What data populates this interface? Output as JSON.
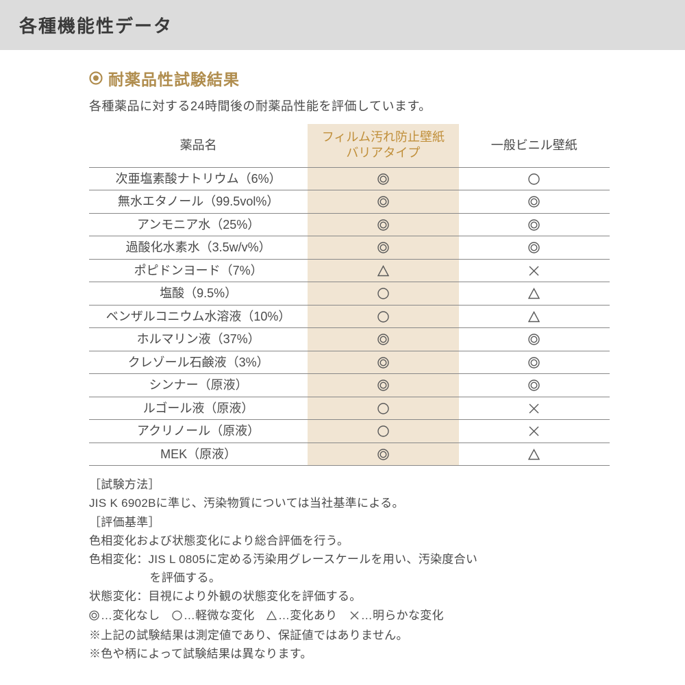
{
  "colors": {
    "header_bg": "#dcdcdc",
    "header_text": "#3a3a3a",
    "accent": "#b08d4e",
    "accent_light": "#c08f3a",
    "highlight_bg": "#f1e5d3",
    "body_text": "#4a4a4a",
    "border": "#888888",
    "symbol_stroke": "#595959"
  },
  "header": {
    "title": "各種機能性データ"
  },
  "section": {
    "title": "耐薬品性試験結果",
    "subtitle": "各種薬品に対する24時間後の耐薬品性能を評価しています。"
  },
  "table": {
    "columns": {
      "name": "薬品名",
      "film_line1": "フィルム汚れ防止壁紙",
      "film_line2": "バリアタイプ",
      "general": "一般ビニル壁紙"
    },
    "symbol_size": 17,
    "symbol_stroke_width": 1.4,
    "rows": [
      {
        "name": "次亜塩素酸ナトリウム（6%）",
        "film": "double",
        "general": "single"
      },
      {
        "name": "無水エタノール（99.5vol%）",
        "film": "double",
        "general": "double"
      },
      {
        "name": "アンモニア水（25%）",
        "film": "double",
        "general": "double"
      },
      {
        "name": "過酸化水素水（3.5w/v%）",
        "film": "double",
        "general": "double"
      },
      {
        "name": "ポピドンヨード（7%）",
        "film": "triangle",
        "general": "cross"
      },
      {
        "name": "塩酸（9.5%）",
        "film": "single",
        "general": "triangle"
      },
      {
        "name": "ベンザルコニウム水溶液（10%）",
        "film": "single",
        "general": "triangle"
      },
      {
        "name": "ホルマリン液（37%）",
        "film": "double",
        "general": "double"
      },
      {
        "name": "クレゾール石鹸液（3%）",
        "film": "double",
        "general": "double"
      },
      {
        "name": "シンナー（原液）",
        "film": "double",
        "general": "double"
      },
      {
        "name": "ルゴール液（原液）",
        "film": "single",
        "general": "cross"
      },
      {
        "name": "アクリノール（原液）",
        "film": "single",
        "general": "cross"
      },
      {
        "name": "MEK（原液）",
        "film": "double",
        "general": "triangle"
      }
    ]
  },
  "notes": {
    "method_label": "［試験方法］",
    "method_text": "JIS K 6902Bに準じ、汚染物質については当社基準による。",
    "criteria_label": "［評価基準］",
    "criteria_text1": "色相変化および状態変化により総合評価を行う。",
    "criteria_text2a": "色相変化：JIS L 0805に定める汚染用グレースケールを用い、汚染度合い",
    "criteria_text2b": "を評価する。",
    "criteria_text3": "状態変化：目視により外観の状態変化を評価する。",
    "legend": {
      "double": "…変化なし",
      "single": "…軽微な変化",
      "triangle": "…変化あり",
      "cross": "…明らかな変化"
    },
    "disclaimer1": "※上記の試験結果は測定値であり、保証値ではありません。",
    "disclaimer2": "※色や柄によって試験結果は異なります。"
  }
}
